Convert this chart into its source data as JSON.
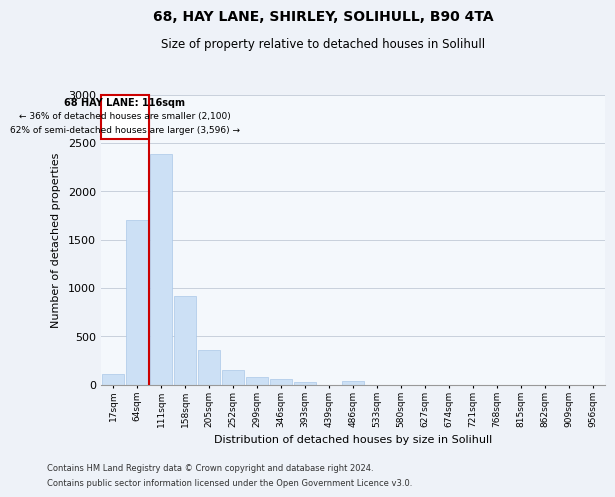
{
  "title1": "68, HAY LANE, SHIRLEY, SOLIHULL, B90 4TA",
  "title2": "Size of property relative to detached houses in Solihull",
  "xlabel": "Distribution of detached houses by size in Solihull",
  "ylabel": "Number of detached properties",
  "categories": [
    "17sqm",
    "64sqm",
    "111sqm",
    "158sqm",
    "205sqm",
    "252sqm",
    "299sqm",
    "346sqm",
    "393sqm",
    "439sqm",
    "486sqm",
    "533sqm",
    "580sqm",
    "627sqm",
    "674sqm",
    "721sqm",
    "768sqm",
    "815sqm",
    "862sqm",
    "909sqm",
    "956sqm"
  ],
  "values": [
    110,
    1700,
    2380,
    920,
    360,
    155,
    80,
    55,
    30,
    0,
    35,
    0,
    0,
    0,
    0,
    0,
    0,
    0,
    0,
    0,
    0
  ],
  "bar_color": "#cce0f5",
  "bar_edge_color": "#aac8e8",
  "grid_color": "#c8d0dc",
  "property_line_color": "#cc0000",
  "property_bin_index": 2,
  "annotation_line1": "68 HAY LANE: 116sqm",
  "annotation_line2": "← 36% of detached houses are smaller (2,100)",
  "annotation_line3": "62% of semi-detached houses are larger (3,596) →",
  "annotation_box_color": "#cc0000",
  "ylim": [
    0,
    3000
  ],
  "yticks": [
    0,
    500,
    1000,
    1500,
    2000,
    2500,
    3000
  ],
  "footnote1": "Contains HM Land Registry data © Crown copyright and database right 2024.",
  "footnote2": "Contains public sector information licensed under the Open Government Licence v3.0.",
  "bg_color": "#eef2f8",
  "plot_bg_color": "#f4f8fc"
}
